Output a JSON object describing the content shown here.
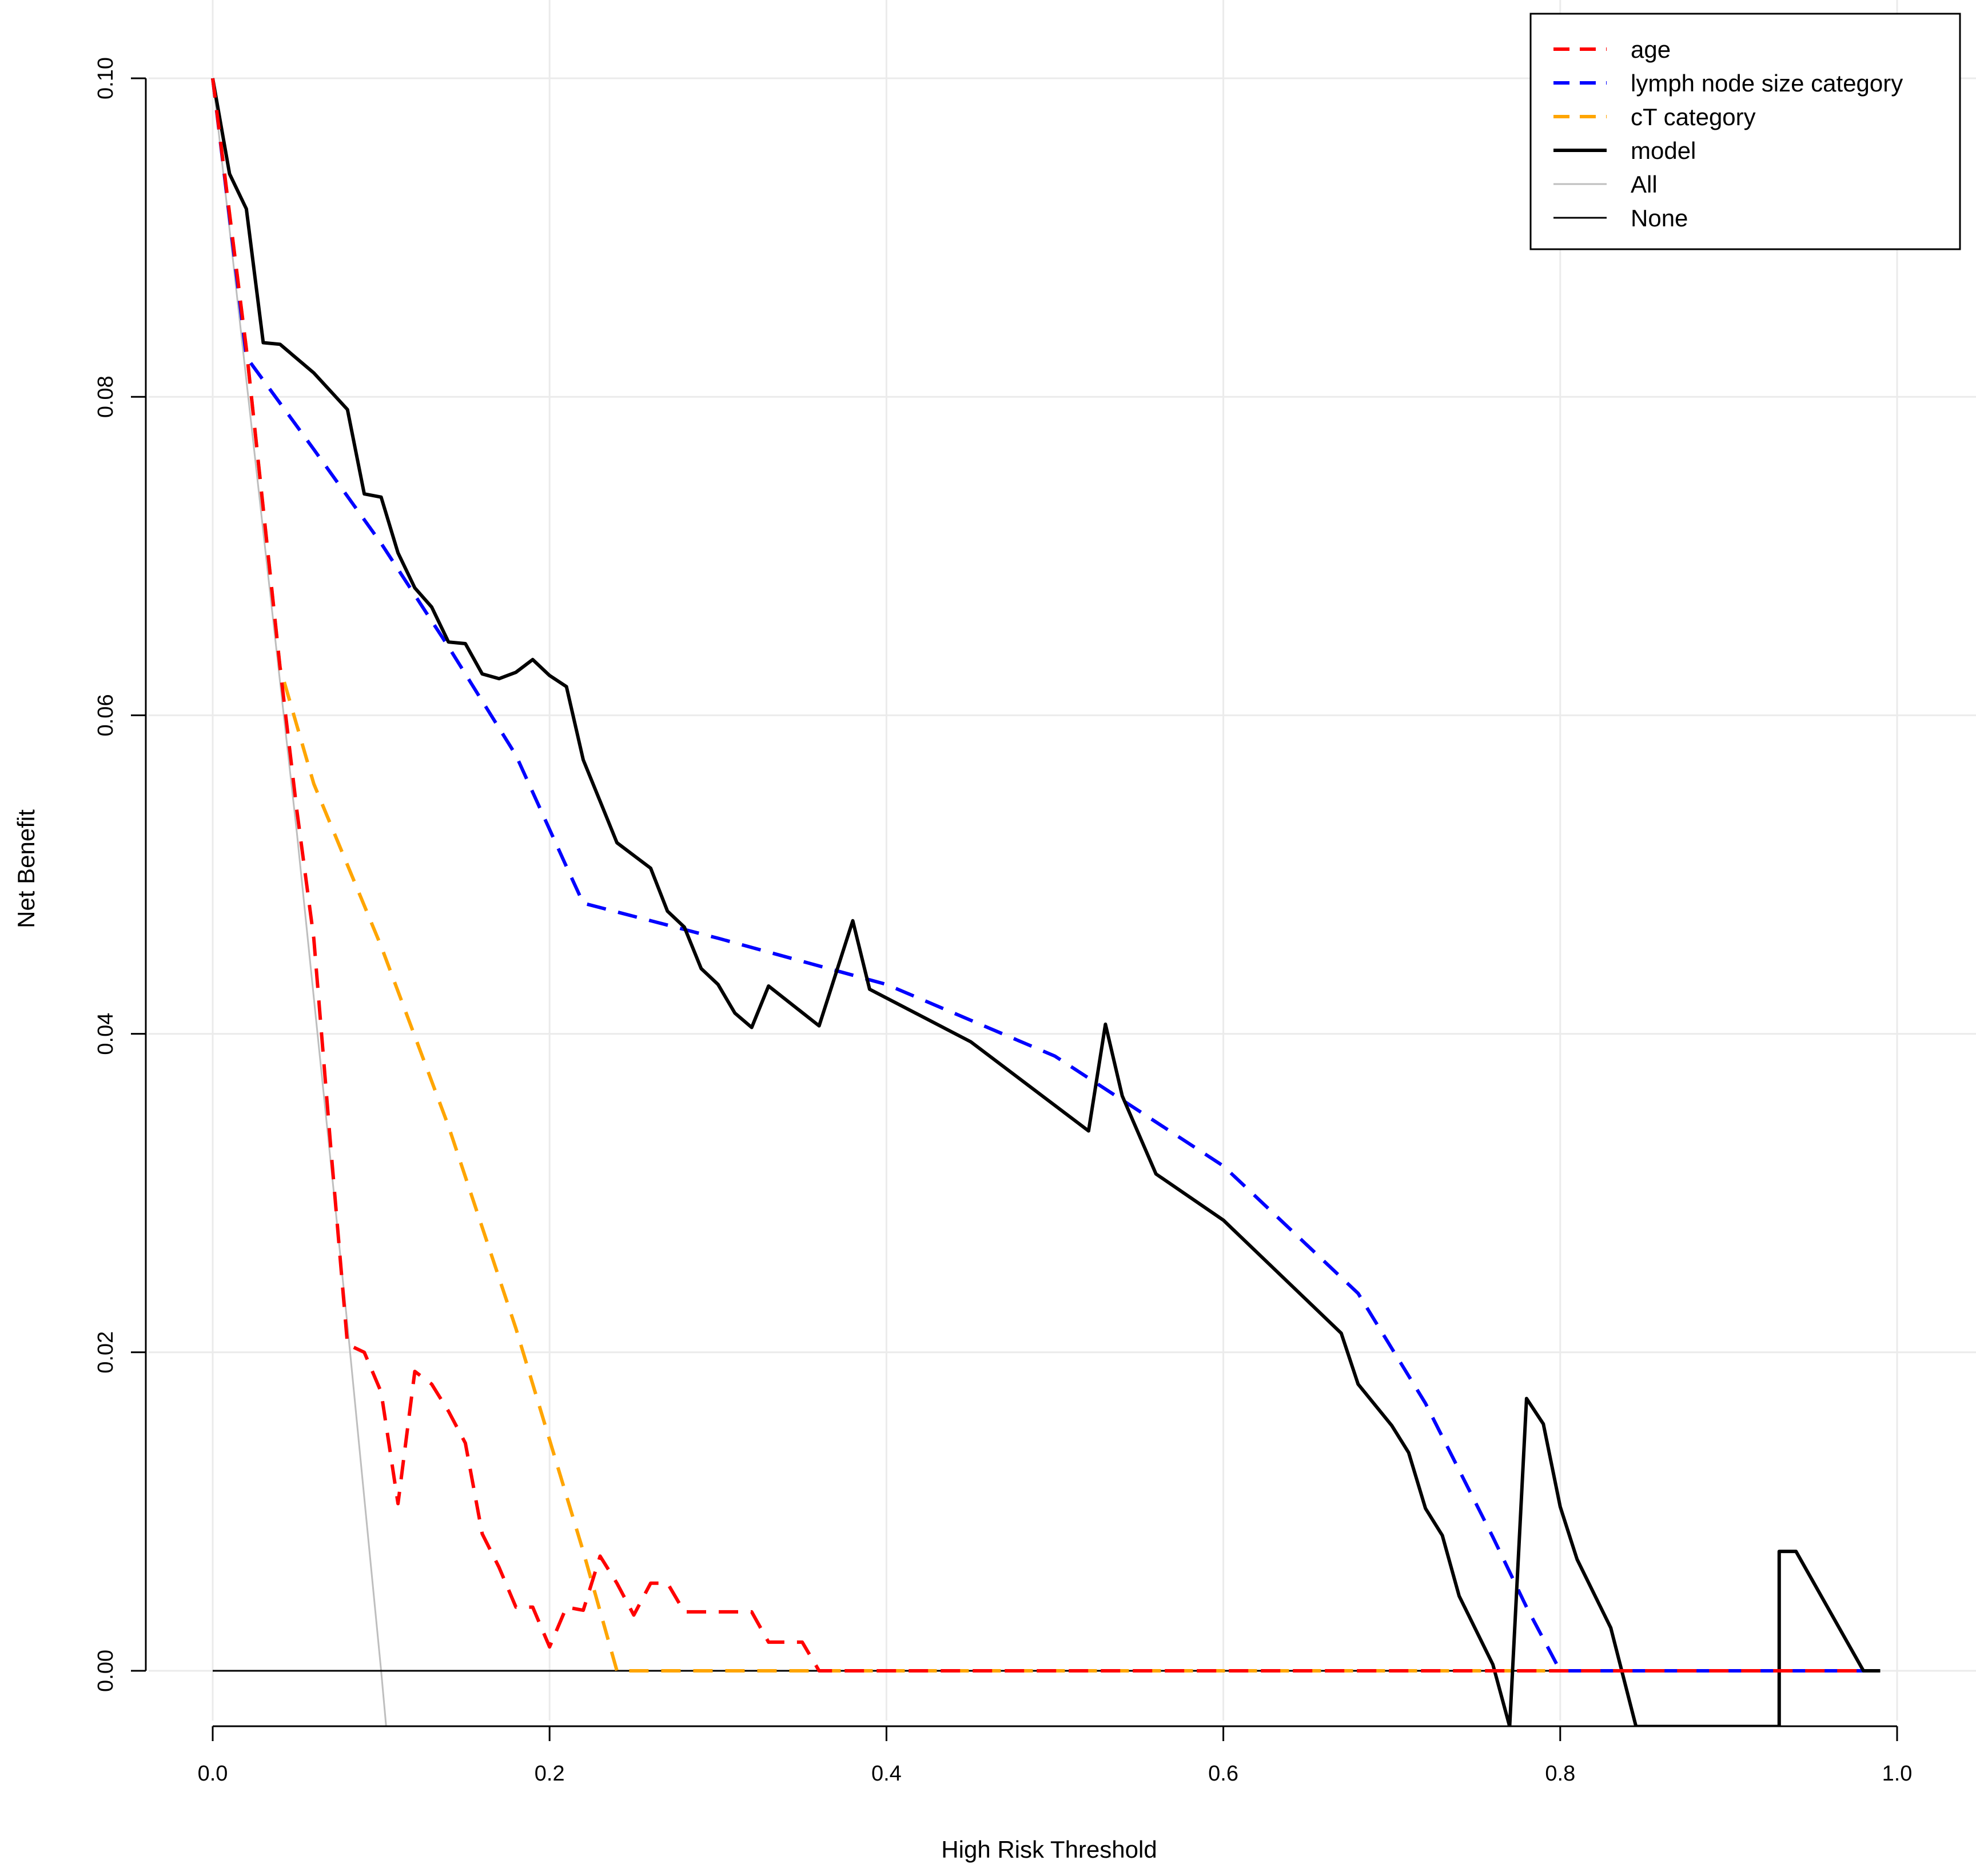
{
  "chart_data": {
    "type": "line",
    "title": "",
    "xlabel": "High Risk Threshold",
    "ylabel": "Net Benefit",
    "xlim": [
      0,
      1
    ],
    "ylim": [
      -0.0035,
      0.1
    ],
    "x_ticks": [
      "0.0",
      "0.2",
      "0.4",
      "0.6",
      "0.8",
      "1.0"
    ],
    "y_ticks": [
      "0.00",
      "0.02",
      "0.04",
      "0.06",
      "0.08",
      "0.10"
    ],
    "grid": true,
    "legend_position": "top-right",
    "series": [
      {
        "name": "age",
        "color": "#ff0000",
        "style": "dashed",
        "points": [
          [
            0,
            0.1
          ],
          [
            0.02,
            0.083
          ],
          [
            0.04,
            0.063
          ],
          [
            0.05,
            0.054
          ],
          [
            0.06,
            0.046
          ],
          [
            0.07,
            0.033
          ],
          [
            0.08,
            0.0205
          ],
          [
            0.09,
            0.02
          ],
          [
            0.1,
            0.0175
          ],
          [
            0.11,
            0.0105
          ],
          [
            0.12,
            0.0188
          ],
          [
            0.13,
            0.018
          ],
          [
            0.14,
            0.0163
          ],
          [
            0.15,
            0.0143
          ],
          [
            0.16,
            0.0086
          ],
          [
            0.17,
            0.0065
          ],
          [
            0.18,
            0.004
          ],
          [
            0.19,
            0.004
          ],
          [
            0.2,
            0.0015
          ],
          [
            0.21,
            0.004
          ],
          [
            0.22,
            0.0038
          ],
          [
            0.23,
            0.0072
          ],
          [
            0.24,
            0.0055
          ],
          [
            0.25,
            0.0035
          ],
          [
            0.26,
            0.0055
          ],
          [
            0.27,
            0.0055
          ],
          [
            0.28,
            0.0037
          ],
          [
            0.29,
            0.0037
          ],
          [
            0.3,
            0.0037
          ],
          [
            0.31,
            0.0037
          ],
          [
            0.32,
            0.0037
          ],
          [
            0.33,
            0.0018
          ],
          [
            0.34,
            0.0018
          ],
          [
            0.35,
            0.0018
          ],
          [
            0.36,
            0
          ],
          [
            0.98,
            0
          ]
        ]
      },
      {
        "name": "lymph node size category",
        "color": "#0000ff",
        "style": "dashed",
        "points": [
          [
            0,
            0.1
          ],
          [
            0.02,
            0.0825
          ],
          [
            0.06,
            0.0767
          ],
          [
            0.1,
            0.0708
          ],
          [
            0.14,
            0.0643
          ],
          [
            0.18,
            0.0575
          ],
          [
            0.21,
            0.0505
          ],
          [
            0.22,
            0.0482
          ],
          [
            0.3,
            0.046
          ],
          [
            0.4,
            0.0431
          ],
          [
            0.5,
            0.0386
          ],
          [
            0.6,
            0.0317
          ],
          [
            0.68,
            0.0237
          ],
          [
            0.72,
            0.0168
          ],
          [
            0.76,
            0.0084
          ],
          [
            0.78,
            0.004
          ],
          [
            0.8,
            0
          ],
          [
            0.98,
            0
          ]
        ]
      },
      {
        "name": "cT category",
        "color": "#ffa500",
        "style": "dashed",
        "points": [
          [
            0,
            0.1
          ],
          [
            0.02,
            0.083
          ],
          [
            0.04,
            0.063
          ],
          [
            0.06,
            0.0557
          ],
          [
            0.1,
            0.0455
          ],
          [
            0.14,
            0.0342
          ],
          [
            0.18,
            0.0215
          ],
          [
            0.22,
            0.0075
          ],
          [
            0.24,
            0
          ],
          [
            0.98,
            0
          ]
        ]
      },
      {
        "name": "model",
        "color": "#000000",
        "style": "solid",
        "points": [
          [
            0,
            0.1
          ],
          [
            0.01,
            0.094
          ],
          [
            0.02,
            0.0918
          ],
          [
            0.03,
            0.0834
          ],
          [
            0.04,
            0.0833
          ],
          [
            0.06,
            0.0815
          ],
          [
            0.08,
            0.0792
          ],
          [
            0.09,
            0.0739
          ],
          [
            0.1,
            0.0737
          ],
          [
            0.11,
            0.0702
          ],
          [
            0.12,
            0.068
          ],
          [
            0.13,
            0.0668
          ],
          [
            0.14,
            0.0646
          ],
          [
            0.15,
            0.0645
          ],
          [
            0.16,
            0.0626
          ],
          [
            0.17,
            0.0623
          ],
          [
            0.18,
            0.0627
          ],
          [
            0.19,
            0.0635
          ],
          [
            0.2,
            0.0625
          ],
          [
            0.21,
            0.0618
          ],
          [
            0.22,
            0.0572
          ],
          [
            0.23,
            0.0546
          ],
          [
            0.24,
            0.052
          ],
          [
            0.25,
            0.0512
          ],
          [
            0.26,
            0.0504
          ],
          [
            0.27,
            0.0477
          ],
          [
            0.28,
            0.0467
          ],
          [
            0.29,
            0.0441
          ],
          [
            0.3,
            0.0431
          ],
          [
            0.31,
            0.0413
          ],
          [
            0.32,
            0.0404
          ],
          [
            0.33,
            0.043
          ],
          [
            0.36,
            0.0405
          ],
          [
            0.38,
            0.0471
          ],
          [
            0.39,
            0.0428
          ],
          [
            0.45,
            0.0395
          ],
          [
            0.52,
            0.0339
          ],
          [
            0.53,
            0.0406
          ],
          [
            0.54,
            0.0361
          ],
          [
            0.56,
            0.0312
          ],
          [
            0.6,
            0.0283
          ],
          [
            0.67,
            0.0212
          ],
          [
            0.68,
            0.018
          ],
          [
            0.7,
            0.0154
          ],
          [
            0.71,
            0.0137
          ],
          [
            0.72,
            0.0102
          ],
          [
            0.73,
            0.0085
          ],
          [
            0.74,
            0.0047
          ],
          [
            0.76,
            0.0004
          ],
          [
            0.77,
            -0.0035
          ],
          [
            0.78,
            0.0171
          ],
          [
            0.79,
            0.0155
          ],
          [
            0.8,
            0.0103
          ],
          [
            0.81,
            0.007
          ],
          [
            0.83,
            0.0027
          ],
          [
            0.845,
            -0.0035
          ],
          [
            0.93,
            -0.0035
          ],
          [
            0.93,
            0.0075
          ],
          [
            0.94,
            0.0075
          ],
          [
            0.98,
            0
          ],
          [
            0.99,
            0
          ]
        ]
      },
      {
        "name": "All",
        "color": "#bebebe",
        "style": "solid",
        "points": [
          [
            0,
            0.1
          ],
          [
            0.05,
            0.0526
          ],
          [
            0.08,
            0.0217
          ],
          [
            0.1,
            0
          ],
          [
            0.103,
            -0.0035
          ]
        ]
      },
      {
        "name": "None",
        "color": "#000000",
        "style": "solid-thin",
        "points": [
          [
            0,
            0
          ],
          [
            0.99,
            0
          ]
        ]
      }
    ]
  }
}
